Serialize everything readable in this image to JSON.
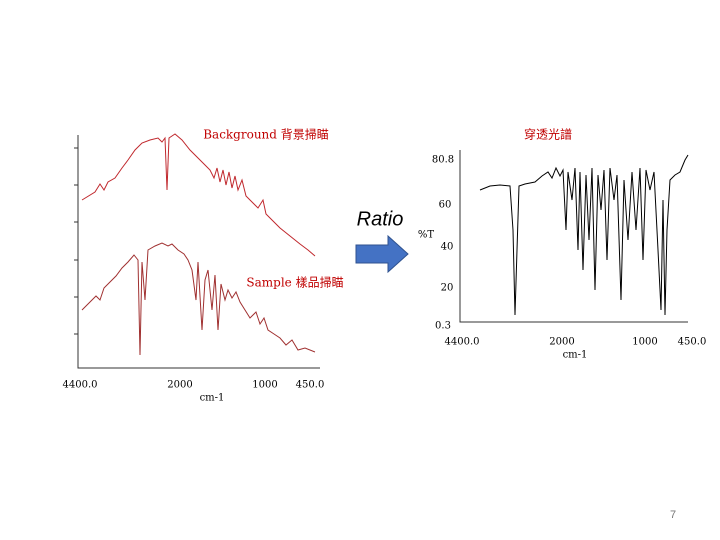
{
  "left_panel": {
    "background_label": "Background 背景掃瞄",
    "sample_label": "Sample 樣品掃瞄",
    "x_labels": [
      "4400.0",
      "2000",
      "1000",
      "450.0"
    ],
    "x_unit": "cm-1"
  },
  "ratio_label": "Ratio",
  "right_panel": {
    "title": "穿透光譜",
    "y_labels": [
      "80.8",
      "60",
      "40",
      "20",
      "0.3"
    ],
    "y_unit": "%T",
    "x_labels": [
      "4400.0",
      "2000",
      "1000",
      "450.0"
    ],
    "x_unit": "cm-1"
  },
  "page_number": "7"
}
